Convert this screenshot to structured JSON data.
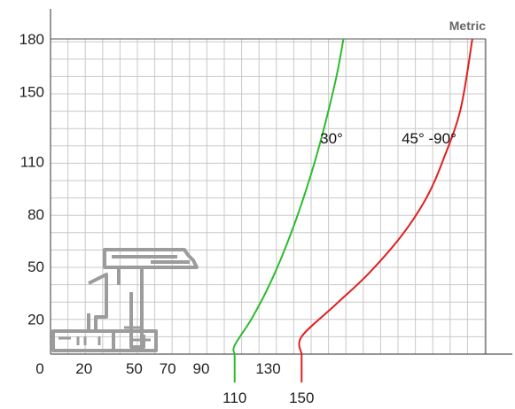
{
  "chart_data": {
    "type": "line",
    "corner_label": "Metric",
    "x_ticks_row1": [
      "0",
      "20",
      "50",
      "70",
      "90",
      "130"
    ],
    "x_ticks_row1_values": [
      0,
      20,
      50,
      70,
      90,
      130
    ],
    "x_ticks_row2": [
      "110",
      "150"
    ],
    "x_ticks_row2_values": [
      110,
      150
    ],
    "y_ticks": [
      "20",
      "50",
      "80",
      "110",
      "150",
      "180"
    ],
    "y_ticks_values": [
      20,
      50,
      80,
      110,
      150,
      180
    ],
    "xlim": [
      0,
      260
    ],
    "ylim": [
      0,
      180
    ],
    "grid": true,
    "series": [
      {
        "name": "30°",
        "color": "#2dbb2d",
        "points": [
          [
            110,
            0
          ],
          [
            110,
            5
          ],
          [
            120,
            20
          ],
          [
            130,
            38
          ],
          [
            140,
            60
          ],
          [
            150,
            86
          ],
          [
            160,
            117
          ],
          [
            170,
            155
          ],
          [
            175,
            180
          ]
        ]
      },
      {
        "name": "45° -90°",
        "color": "#e02020",
        "points": [
          [
            150,
            0
          ],
          [
            150,
            10
          ],
          [
            170,
            28
          ],
          [
            190,
            46
          ],
          [
            210,
            68
          ],
          [
            225,
            90
          ],
          [
            235,
            112
          ],
          [
            245,
            140
          ],
          [
            252,
            180
          ]
        ]
      }
    ],
    "annotations": [
      {
        "text": "30°",
        "series": 0
      },
      {
        "text": "45° -90°",
        "series": 1
      }
    ],
    "decoration": "grey window-frame profile cross-section drawing in lower-left corner"
  }
}
